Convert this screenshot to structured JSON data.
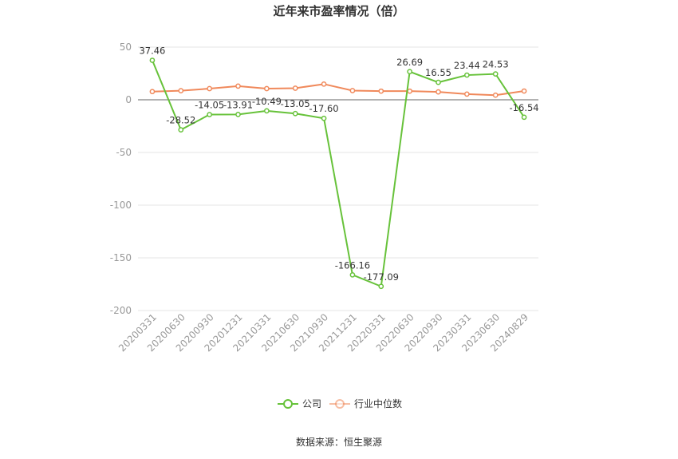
{
  "chart_data": {
    "type": "line",
    "title": "近年来市盈率情况（倍）",
    "categories": [
      "20200331",
      "20200630",
      "20200930",
      "20201231",
      "20210331",
      "20210630",
      "20210930",
      "20211231",
      "20220331",
      "20220630",
      "20220930",
      "20230331",
      "20230630",
      "20240829"
    ],
    "series": [
      {
        "name": "公司",
        "color": "#67c23a",
        "values": [
          37.46,
          -28.52,
          -14.05,
          -13.91,
          -10.49,
          -13.05,
          -17.6,
          -166.16,
          -177.09,
          26.69,
          16.55,
          23.44,
          24.53,
          -16.54
        ],
        "labels": [
          "37.46",
          "-28.52",
          "-14.05",
          "-13.91",
          "-10.49",
          "-13.05",
          "-17.60",
          "-166.16",
          "-177.09",
          "26.69",
          "16.55",
          "23.44",
          "24.53",
          "-16.54"
        ]
      },
      {
        "name": "行业中位数",
        "color": "#f0895b",
        "values": [
          7.8,
          8.6,
          10.6,
          13.0,
          10.6,
          11.0,
          14.9,
          8.7,
          8.2,
          8.2,
          7.5,
          5.4,
          4.4,
          8.3
        ]
      }
    ],
    "y_ticks": [
      "50",
      "0",
      "-50",
      "-100",
      "-150",
      "-200"
    ],
    "ylim": [
      -200,
      50
    ],
    "grid": true,
    "legend_position": "bottom-center",
    "source_text": "数据来源：恒生聚源"
  }
}
